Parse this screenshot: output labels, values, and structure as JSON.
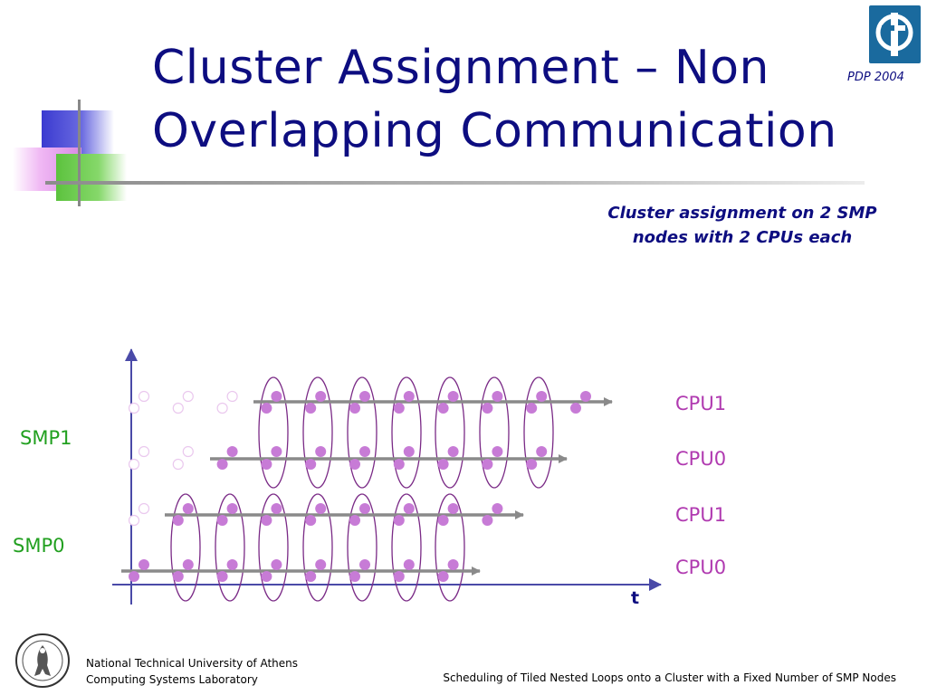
{
  "slide": {
    "title_line1": "Cluster Assignment – Non",
    "title_line2": "Overlapping Communication",
    "conference": "PDP 2004",
    "caption_line1": "Cluster assignment on 2 SMP",
    "caption_line2": "nodes with 2 CPUs each"
  },
  "diagram": {
    "smp_labels": [
      "SMP1",
      "SMP0"
    ],
    "cpu_labels": [
      "CPU1",
      "CPU0",
      "CPU1",
      "CPU0"
    ],
    "time_label": "t",
    "colors": {
      "dot": "#c77bd6",
      "dot_faded": "#eac8ee",
      "cluster_outline": "#7a2a86",
      "arrow": "#8a8a8a",
      "axis": "#4a4aa8"
    }
  },
  "footer": {
    "institution_line1": "National Technical University of Athens",
    "institution_line2": "Computing Systems Laboratory",
    "paper_title": "Scheduling of Tiled Nested Loops onto a Cluster with a Fixed Number of SMP Nodes"
  }
}
